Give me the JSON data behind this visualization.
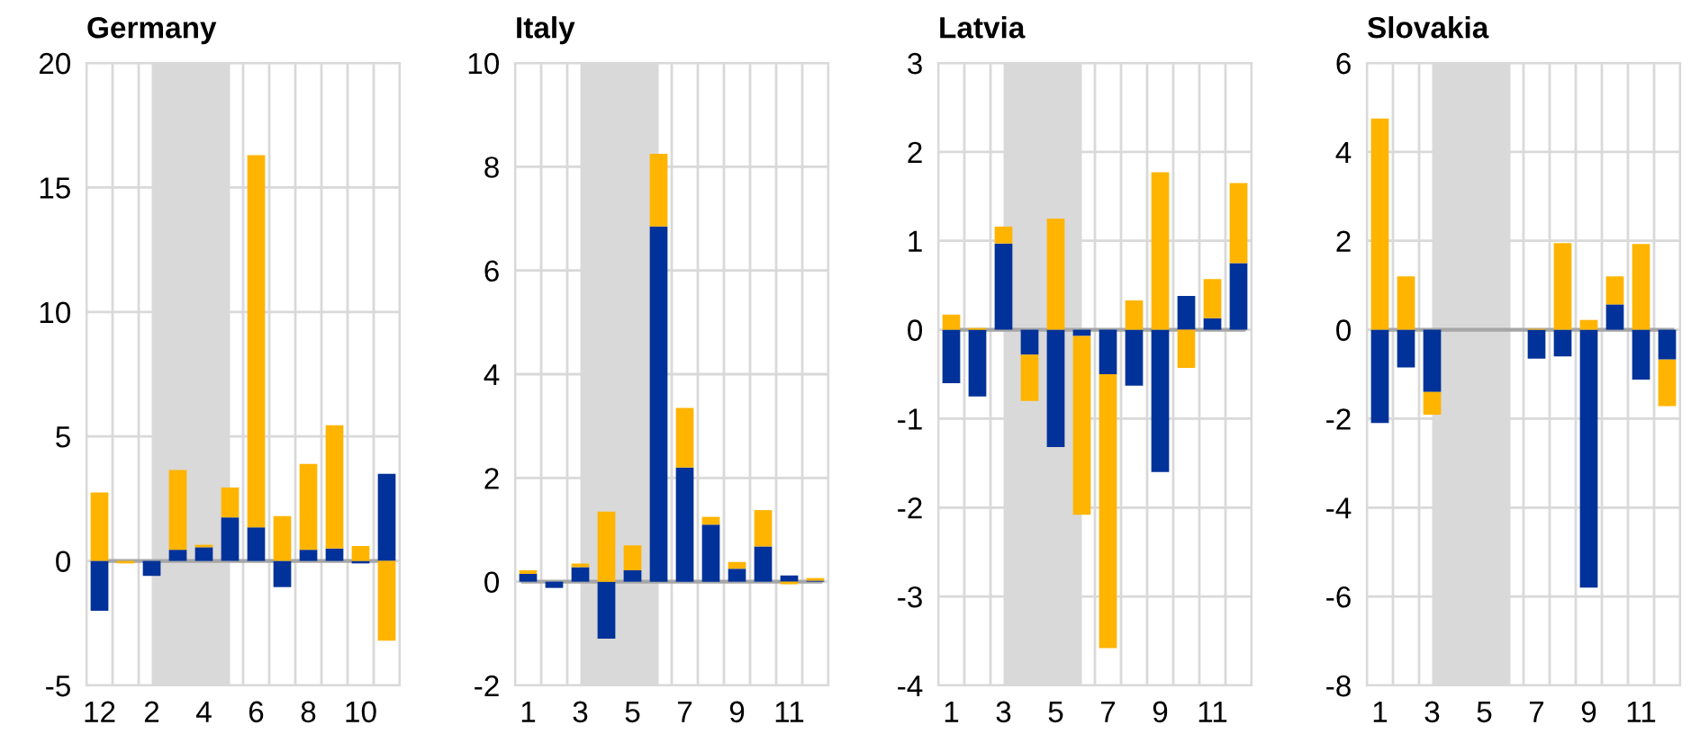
{
  "chart_data": [
    {
      "type": "bar",
      "title": "Germany",
      "stacked": true,
      "categories": [
        "12",
        null,
        "2",
        null,
        "4",
        null,
        "6",
        null,
        "8",
        null,
        "10",
        null
      ],
      "series": [
        {
          "color": "#003299",
          "values": [
            -2.0,
            null,
            -0.6,
            0.45,
            0.55,
            1.75,
            1.35,
            -1.05,
            0.45,
            0.5,
            -0.1,
            3.5
          ]
        },
        {
          "color": "#ffb400",
          "values": [
            2.75,
            -0.1,
            null,
            3.2,
            0.1,
            1.2,
            14.95,
            1.8,
            3.45,
            4.95,
            0.6,
            -3.2
          ]
        }
      ],
      "ylim": [
        -5,
        20
      ],
      "yticks": [
        -5,
        0,
        5,
        10,
        15,
        20
      ],
      "grid": true,
      "ref_lines": [
        {
          "axis": "y",
          "value": 0,
          "color": "#a6a6a6"
        }
      ]
    },
    {
      "type": "bar",
      "title": "Italy",
      "stacked": true,
      "categories": [
        "1",
        null,
        "3",
        null,
        "5",
        null,
        "7",
        null,
        "9",
        null,
        "11",
        null
      ],
      "series": [
        {
          "color": "#003299",
          "values": [
            0.15,
            -0.12,
            0.28,
            -1.1,
            0.22,
            6.85,
            2.2,
            1.1,
            0.25,
            0.68,
            0.12,
            0.02
          ]
        },
        {
          "color": "#ffb400",
          "values": [
            0.07,
            null,
            0.07,
            1.35,
            0.48,
            1.4,
            1.15,
            0.15,
            0.13,
            0.7,
            -0.05,
            0.05
          ]
        }
      ],
      "ylim": [
        -2,
        10
      ],
      "yticks": [
        -2,
        0,
        2,
        4,
        6,
        8,
        10
      ],
      "grid": true,
      "ref_lines": [
        {
          "axis": "y",
          "value": 0,
          "color": "#a6a6a6"
        }
      ]
    },
    {
      "type": "bar",
      "title": "Latvia",
      "stacked": true,
      "categories": [
        "1",
        null,
        "3",
        null,
        "5",
        null,
        "7",
        null,
        "9",
        null,
        "11",
        null
      ],
      "series": [
        {
          "color": "#003299",
          "values": [
            -0.6,
            -0.75,
            0.97,
            -0.28,
            -1.32,
            -0.07,
            -0.5,
            -0.63,
            -1.6,
            0.38,
            0.13,
            0.75
          ]
        },
        {
          "color": "#ffb400",
          "values": [
            0.17,
            0.02,
            0.19,
            -0.52,
            1.25,
            -2.01,
            -3.08,
            0.33,
            1.77,
            -0.43,
            0.44,
            0.9
          ]
        }
      ],
      "ylim": [
        -4,
        3
      ],
      "yticks": [
        -4,
        -3,
        -2,
        -1,
        0,
        1,
        2,
        3
      ],
      "grid": true,
      "ref_lines": [
        {
          "axis": "y",
          "value": 0,
          "color": "#a6a6a6"
        }
      ]
    },
    {
      "type": "bar",
      "title": "Slovakia",
      "stacked": true,
      "categories": [
        "1",
        null,
        "3",
        null,
        "5",
        null,
        "7",
        null,
        "9",
        null,
        "11",
        null
      ],
      "series": [
        {
          "color": "#003299",
          "values": [
            -2.1,
            -0.85,
            -1.4,
            null,
            null,
            null,
            -0.65,
            -0.6,
            -5.8,
            0.57,
            -1.12,
            -0.67
          ]
        },
        {
          "color": "#ffb400",
          "values": [
            4.75,
            1.2,
            -0.51,
            null,
            null,
            null,
            0.02,
            1.95,
            0.22,
            0.63,
            1.93,
            -1.05
          ]
        }
      ],
      "ylim": [
        -8,
        6
      ],
      "yticks": [
        -8,
        -6,
        -4,
        -2,
        0,
        2,
        4,
        6
      ],
      "grid": true,
      "ref_lines": [
        {
          "axis": "y",
          "value": 0,
          "color": "#a6a6a6"
        }
      ]
    }
  ]
}
